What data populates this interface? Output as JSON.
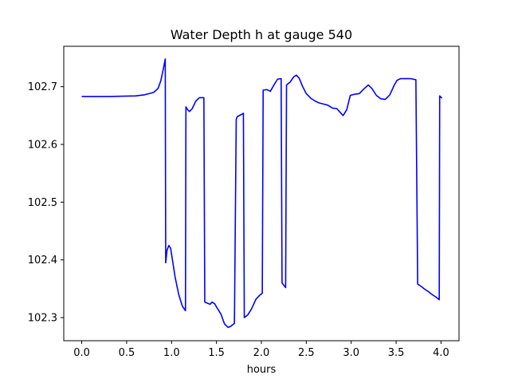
{
  "chart_data": {
    "type": "line",
    "title": "Water Depth h at gauge 540",
    "xlabel": "hours",
    "ylabel": "",
    "xlim": [
      -0.2,
      4.2
    ],
    "ylim": [
      102.26,
      102.77
    ],
    "xticks": [
      0.0,
      0.5,
      1.0,
      1.5,
      2.0,
      2.5,
      3.0,
      3.5,
      4.0
    ],
    "xtick_labels": [
      "0.0",
      "0.5",
      "1.0",
      "1.5",
      "2.0",
      "2.5",
      "3.0",
      "3.5",
      "4.0"
    ],
    "yticks": [
      102.3,
      102.4,
      102.5,
      102.6,
      102.7
    ],
    "ytick_labels": [
      "102.3",
      "102.4",
      "102.5",
      "102.6",
      "102.7"
    ],
    "grid": false,
    "legend": "none",
    "series": [
      {
        "color": "#0000ff",
        "x": [
          0.0,
          0.3,
          0.6,
          0.7,
          0.8,
          0.85,
          0.88,
          0.91,
          0.93,
          0.935,
          0.95,
          0.97,
          0.99,
          1.01,
          1.04,
          1.08,
          1.12,
          1.155,
          1.16,
          1.18,
          1.2,
          1.23,
          1.27,
          1.31,
          1.36,
          1.37,
          1.4,
          1.43,
          1.45,
          1.48,
          1.51,
          1.55,
          1.59,
          1.63,
          1.66,
          1.7,
          1.72,
          1.73,
          1.78,
          1.8,
          1.81,
          1.85,
          1.89,
          1.94,
          1.99,
          2.01,
          2.02,
          2.06,
          2.1,
          2.14,
          2.18,
          2.22,
          2.23,
          2.27,
          2.28,
          2.32,
          2.36,
          2.39,
          2.42,
          2.46,
          2.5,
          2.55,
          2.6,
          2.64,
          2.69,
          2.74,
          2.79,
          2.84,
          2.88,
          2.91,
          2.95,
          2.99,
          3.04,
          3.09,
          3.14,
          3.19,
          3.23,
          3.28,
          3.33,
          3.38,
          3.43,
          3.48,
          3.51,
          3.55,
          3.6,
          3.66,
          3.72,
          3.74,
          3.78,
          3.82,
          3.86,
          3.9,
          3.94,
          3.98,
          3.985,
          4.01
        ],
        "y": [
          102.683,
          102.683,
          102.684,
          102.686,
          102.69,
          102.697,
          102.71,
          102.732,
          102.748,
          102.395,
          102.417,
          102.425,
          102.42,
          102.4,
          102.37,
          102.34,
          102.32,
          102.312,
          102.665,
          102.66,
          102.657,
          102.662,
          102.675,
          102.681,
          102.681,
          102.327,
          102.325,
          102.323,
          102.327,
          102.324,
          102.316,
          102.306,
          102.289,
          102.283,
          102.285,
          102.29,
          102.643,
          102.648,
          102.652,
          102.654,
          102.3,
          102.305,
          102.315,
          102.332,
          102.34,
          102.342,
          102.694,
          102.695,
          102.692,
          102.703,
          102.713,
          102.714,
          102.36,
          102.352,
          102.703,
          102.708,
          102.717,
          102.72,
          102.715,
          102.7,
          102.688,
          102.68,
          102.675,
          102.672,
          102.67,
          102.668,
          102.663,
          102.662,
          102.655,
          102.65,
          102.66,
          102.685,
          102.687,
          102.688,
          102.696,
          102.703,
          102.697,
          102.685,
          102.679,
          102.678,
          102.686,
          102.703,
          102.711,
          102.714,
          102.714,
          102.714,
          102.712,
          102.358,
          102.354,
          102.349,
          102.345,
          102.34,
          102.336,
          102.331,
          102.684,
          102.68
        ]
      }
    ]
  }
}
